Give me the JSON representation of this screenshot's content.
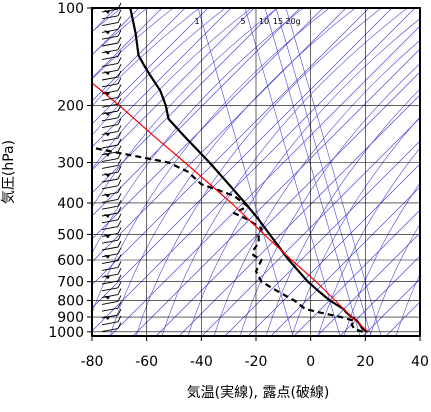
{
  "chart_data": {
    "type": "line",
    "xlabel": "気温(実線), 露点(破線)",
    "ylabel": "気圧(hPa)",
    "xlim": [
      -80,
      40
    ],
    "ylim": [
      1030,
      100
    ],
    "y_scale": "log",
    "xticks": [
      -80,
      -60,
      -40,
      -20,
      0,
      20,
      40
    ],
    "yticks": [
      100,
      200,
      300,
      400,
      500,
      600,
      700,
      800,
      900,
      1000
    ],
    "mixing_ratio_labels": [
      "1",
      "5",
      "10",
      "15",
      "20g"
    ],
    "grid": true,
    "series": [
      {
        "role": "temperature",
        "style": "solid",
        "color": "#000000",
        "points": [
          [
            1000,
            21
          ],
          [
            980,
            19
          ],
          [
            950,
            18
          ],
          [
            925,
            17
          ],
          [
            900,
            15
          ],
          [
            870,
            13
          ],
          [
            850,
            12
          ],
          [
            800,
            7
          ],
          [
            750,
            3
          ],
          [
            700,
            -1
          ],
          [
            600,
            -8
          ],
          [
            500,
            -15
          ],
          [
            450,
            -19
          ],
          [
            400,
            -24
          ],
          [
            350,
            -30
          ],
          [
            300,
            -37
          ],
          [
            250,
            -46
          ],
          [
            220,
            -52
          ],
          [
            200,
            -53
          ],
          [
            180,
            -55
          ],
          [
            160,
            -59
          ],
          [
            150,
            -61
          ],
          [
            140,
            -63
          ],
          [
            120,
            -64
          ],
          [
            100,
            -66
          ]
        ]
      },
      {
        "role": "dewpoint",
        "style": "dashed",
        "color": "#000000",
        "points": [
          [
            1000,
            19
          ],
          [
            980,
            16
          ],
          [
            950,
            15
          ],
          [
            925,
            16
          ],
          [
            900,
            11
          ],
          [
            870,
            3
          ],
          [
            850,
            -2
          ],
          [
            800,
            -6
          ],
          [
            750,
            -12
          ],
          [
            700,
            -18
          ],
          [
            650,
            -20
          ],
          [
            600,
            -18
          ],
          [
            580,
            -21
          ],
          [
            560,
            -21
          ],
          [
            530,
            -19
          ],
          [
            500,
            -19
          ],
          [
            480,
            -18
          ],
          [
            450,
            -23
          ],
          [
            430,
            -28
          ],
          [
            410,
            -23
          ],
          [
            380,
            -28
          ],
          [
            350,
            -40
          ],
          [
            320,
            -45
          ],
          [
            300,
            -52
          ],
          [
            270,
            -80
          ]
        ]
      },
      {
        "role": "parcel",
        "style": "solid",
        "color": "#ff0000",
        "points": [
          [
            1000,
            21
          ],
          [
            900,
            15
          ],
          [
            800,
            9
          ],
          [
            700,
            2
          ],
          [
            600,
            -7
          ],
          [
            500,
            -17
          ],
          [
            400,
            -29
          ],
          [
            300,
            -46
          ],
          [
            250,
            -57
          ],
          [
            200,
            -70
          ],
          [
            165,
            -82
          ]
        ]
      }
    ],
    "wind_barbs": {
      "color": "#000000",
      "x_position": -80
    },
    "background_lines": {
      "color": "#4a4ad8"
    }
  }
}
